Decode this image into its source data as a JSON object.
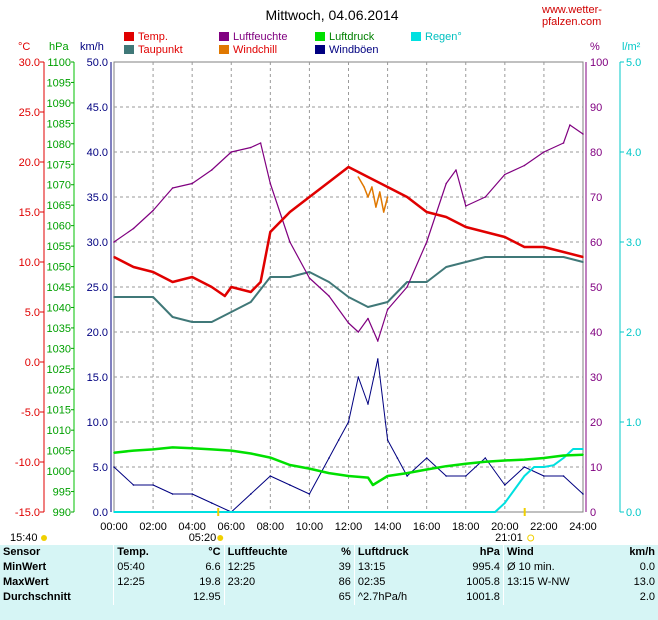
{
  "chart_data": {
    "type": "line",
    "title": "Mittwoch, 04.06.2014",
    "source": "www.wetter-pfalzen.com",
    "x_ticks": [
      "00:00",
      "02:00",
      "04:00",
      "06:00",
      "08:00",
      "10:00",
      "12:00",
      "14:00",
      "16:00",
      "18:00",
      "20:00",
      "22:00",
      "24:00"
    ],
    "sunrise": "05:20",
    "sunset": "21:01",
    "daylength": "15:40",
    "legend": [
      {
        "key": "temp",
        "label": "Temp.",
        "color": "#e00000"
      },
      {
        "key": "humidity",
        "label": "Luftfeuchte",
        "color": "#800080"
      },
      {
        "key": "pressure",
        "label": "Luftdruck",
        "color": "#00e000"
      },
      {
        "key": "rain",
        "label": "Regen°",
        "color": "#00e0e0"
      },
      {
        "key": "dewpoint",
        "label": "Taupunkt",
        "color": "#407878"
      },
      {
        "key": "windchill",
        "label": "Windchill",
        "color": "#e07800"
      },
      {
        "key": "gust",
        "label": "Windböen",
        "color": "#000080"
      }
    ],
    "axes": {
      "temp": {
        "unit": "°C",
        "min": -15,
        "max": 30,
        "step": 5,
        "color": "#e00000",
        "ticks": [
          "30.0",
          "25.0",
          "20.0",
          "15.0",
          "10.0",
          "5.0",
          "0.0",
          "-5.0",
          "-10.0",
          "-15.0"
        ]
      },
      "pressure": {
        "unit": "hPa",
        "min": 990,
        "max": 1100,
        "step": 5,
        "color": "#00a000"
      },
      "wind": {
        "unit": "km/h",
        "min": 0,
        "max": 50,
        "step": 5,
        "color": "#000080",
        "ticks": [
          "50.0",
          "45.0",
          "40.0",
          "35.0",
          "30.0",
          "25.0",
          "20.0",
          "15.0",
          "10.0",
          "5.0",
          "0.0"
        ]
      },
      "humidity": {
        "unit": "%",
        "min": 0,
        "max": 100,
        "step": 10,
        "color": "#800080"
      },
      "rain": {
        "unit": "l/m²",
        "min": 0,
        "max": 5,
        "step": 1,
        "color": "#00c8c8",
        "ticks": [
          "5.0",
          "4.0",
          "3.0",
          "2.0",
          "1.0",
          "0.0"
        ]
      }
    },
    "series": [
      {
        "key": "temp",
        "name": "Temp.",
        "x": [
          0,
          1,
          2,
          3,
          4,
          5,
          5.67,
          6,
          7,
          7.5,
          8,
          9,
          10,
          11,
          12,
          12.5,
          13,
          14,
          15,
          16,
          17,
          18,
          19,
          20,
          21,
          22,
          23,
          24
        ],
        "values": [
          10.5,
          9.5,
          9.0,
          8.0,
          8.5,
          7.5,
          6.6,
          7.5,
          7.0,
          8.0,
          13.0,
          15.0,
          16.5,
          18.0,
          19.5,
          19.0,
          18.5,
          17.5,
          16.5,
          15.0,
          14.5,
          13.5,
          13.0,
          12.5,
          11.5,
          11.5,
          11.0,
          10.5
        ]
      },
      {
        "key": "dewpoint",
        "name": "Taupunkt",
        "x": [
          0,
          1,
          2,
          3,
          4,
          5,
          6,
          7,
          8,
          9,
          10,
          11,
          12,
          13,
          14,
          15,
          16,
          17,
          18,
          19,
          20,
          21,
          22,
          23,
          24
        ],
        "values": [
          6.5,
          6.5,
          6.5,
          4.5,
          4.0,
          4.0,
          5.0,
          6.0,
          8.5,
          8.5,
          9.0,
          8.0,
          6.5,
          5.5,
          6.0,
          8.0,
          8.0,
          9.5,
          10.0,
          10.5,
          10.5,
          10.5,
          10.5,
          10.5,
          10.0
        ]
      },
      {
        "key": "windchill",
        "name": "Windchill",
        "x": [
          12.5,
          12.8,
          13,
          13.2,
          13.4,
          13.6,
          13.8,
          14
        ],
        "values": [
          18.5,
          17.5,
          16.5,
          17.5,
          15.5,
          17.0,
          15.0,
          16.5
        ]
      },
      {
        "key": "humidity",
        "name": "Luftfeuchte",
        "x": [
          0,
          1,
          2,
          3,
          4,
          5,
          6,
          7,
          7.5,
          8,
          9,
          10,
          11,
          12,
          12.5,
          13,
          13.5,
          14,
          15,
          16,
          17,
          17.5,
          18,
          19,
          20,
          21,
          22,
          23,
          23.33,
          24
        ],
        "values": [
          60,
          63,
          67,
          72,
          73,
          76,
          80,
          81,
          82,
          73,
          60,
          52,
          48,
          42,
          40,
          43,
          38,
          45,
          50,
          60,
          73,
          76,
          68,
          70,
          75,
          77,
          80,
          82,
          86,
          84
        ]
      },
      {
        "key": "pressure",
        "name": "Luftdruck",
        "x": [
          0,
          1,
          2,
          3,
          4,
          5,
          6,
          7,
          8,
          9,
          10,
          11,
          12,
          13,
          13.25,
          14,
          15,
          16,
          17,
          18,
          19,
          20,
          21,
          22,
          23,
          24
        ],
        "values": [
          1004.5,
          1005.0,
          1005.3,
          1005.8,
          1005.6,
          1005.3,
          1005.0,
          1004.3,
          1003.3,
          1001.5,
          1000.6,
          999.5,
          998.8,
          998.4,
          996.6,
          998.8,
          999.5,
          1000.4,
          1001.2,
          1001.8,
          1002.3,
          1002.6,
          1002.8,
          1003.2,
          1003.8,
          1004.0
        ]
      },
      {
        "key": "rain",
        "name": "Regen°",
        "x": [
          0,
          19.5,
          20,
          20.5,
          21,
          21.5,
          22,
          22.5,
          23,
          23.5,
          24
        ],
        "values": [
          0,
          0,
          0.1,
          0.25,
          0.4,
          0.5,
          0.5,
          0.52,
          0.6,
          0.7,
          0.7
        ]
      },
      {
        "key": "gust",
        "name": "Windböen",
        "x": [
          0,
          1,
          2,
          3,
          4,
          5,
          6,
          7,
          8,
          9,
          10,
          11,
          11.5,
          12,
          12.5,
          13,
          13.5,
          14,
          14.5,
          15,
          16,
          17,
          18,
          19,
          20,
          21,
          22,
          23,
          24
        ],
        "values": [
          5,
          3,
          3,
          2,
          2,
          1,
          0,
          2,
          4,
          3,
          2,
          6,
          8,
          10,
          15,
          12,
          17,
          8,
          6,
          4,
          6,
          4,
          4,
          6,
          3,
          5,
          4,
          4,
          2
        ]
      }
    ]
  },
  "stats": {
    "headers": [
      "Sensor",
      "Temp.",
      "°C",
      "Luftfeuchte",
      "%",
      "Luftdruck",
      "hPa",
      "Wind",
      "km/h"
    ],
    "rows": [
      {
        "label": "MinWert",
        "t_time": "05:40",
        "t_val": "6.6",
        "h_time": "12:25",
        "h_val": "39",
        "p_time": "13:15",
        "p_val": "995.4",
        "w_time": "Ø 10 min.",
        "w_val": "0.0"
      },
      {
        "label": "MaxWert",
        "t_time": "12:25",
        "t_val": "19.8",
        "h_time": "23:20",
        "h_val": "86",
        "p_time": "02:35",
        "p_val": "1005.8",
        "w_time": "13:15   W-NW",
        "w_val": "13.0"
      },
      {
        "label": "Durchschnitt",
        "t_time": "",
        "t_val": "12.95",
        "h_time": "",
        "h_val": "65",
        "p_time": "^2.7hPa/h",
        "p_val": "1001.8",
        "w_time": "",
        "w_val": "2.0"
      }
    ]
  }
}
